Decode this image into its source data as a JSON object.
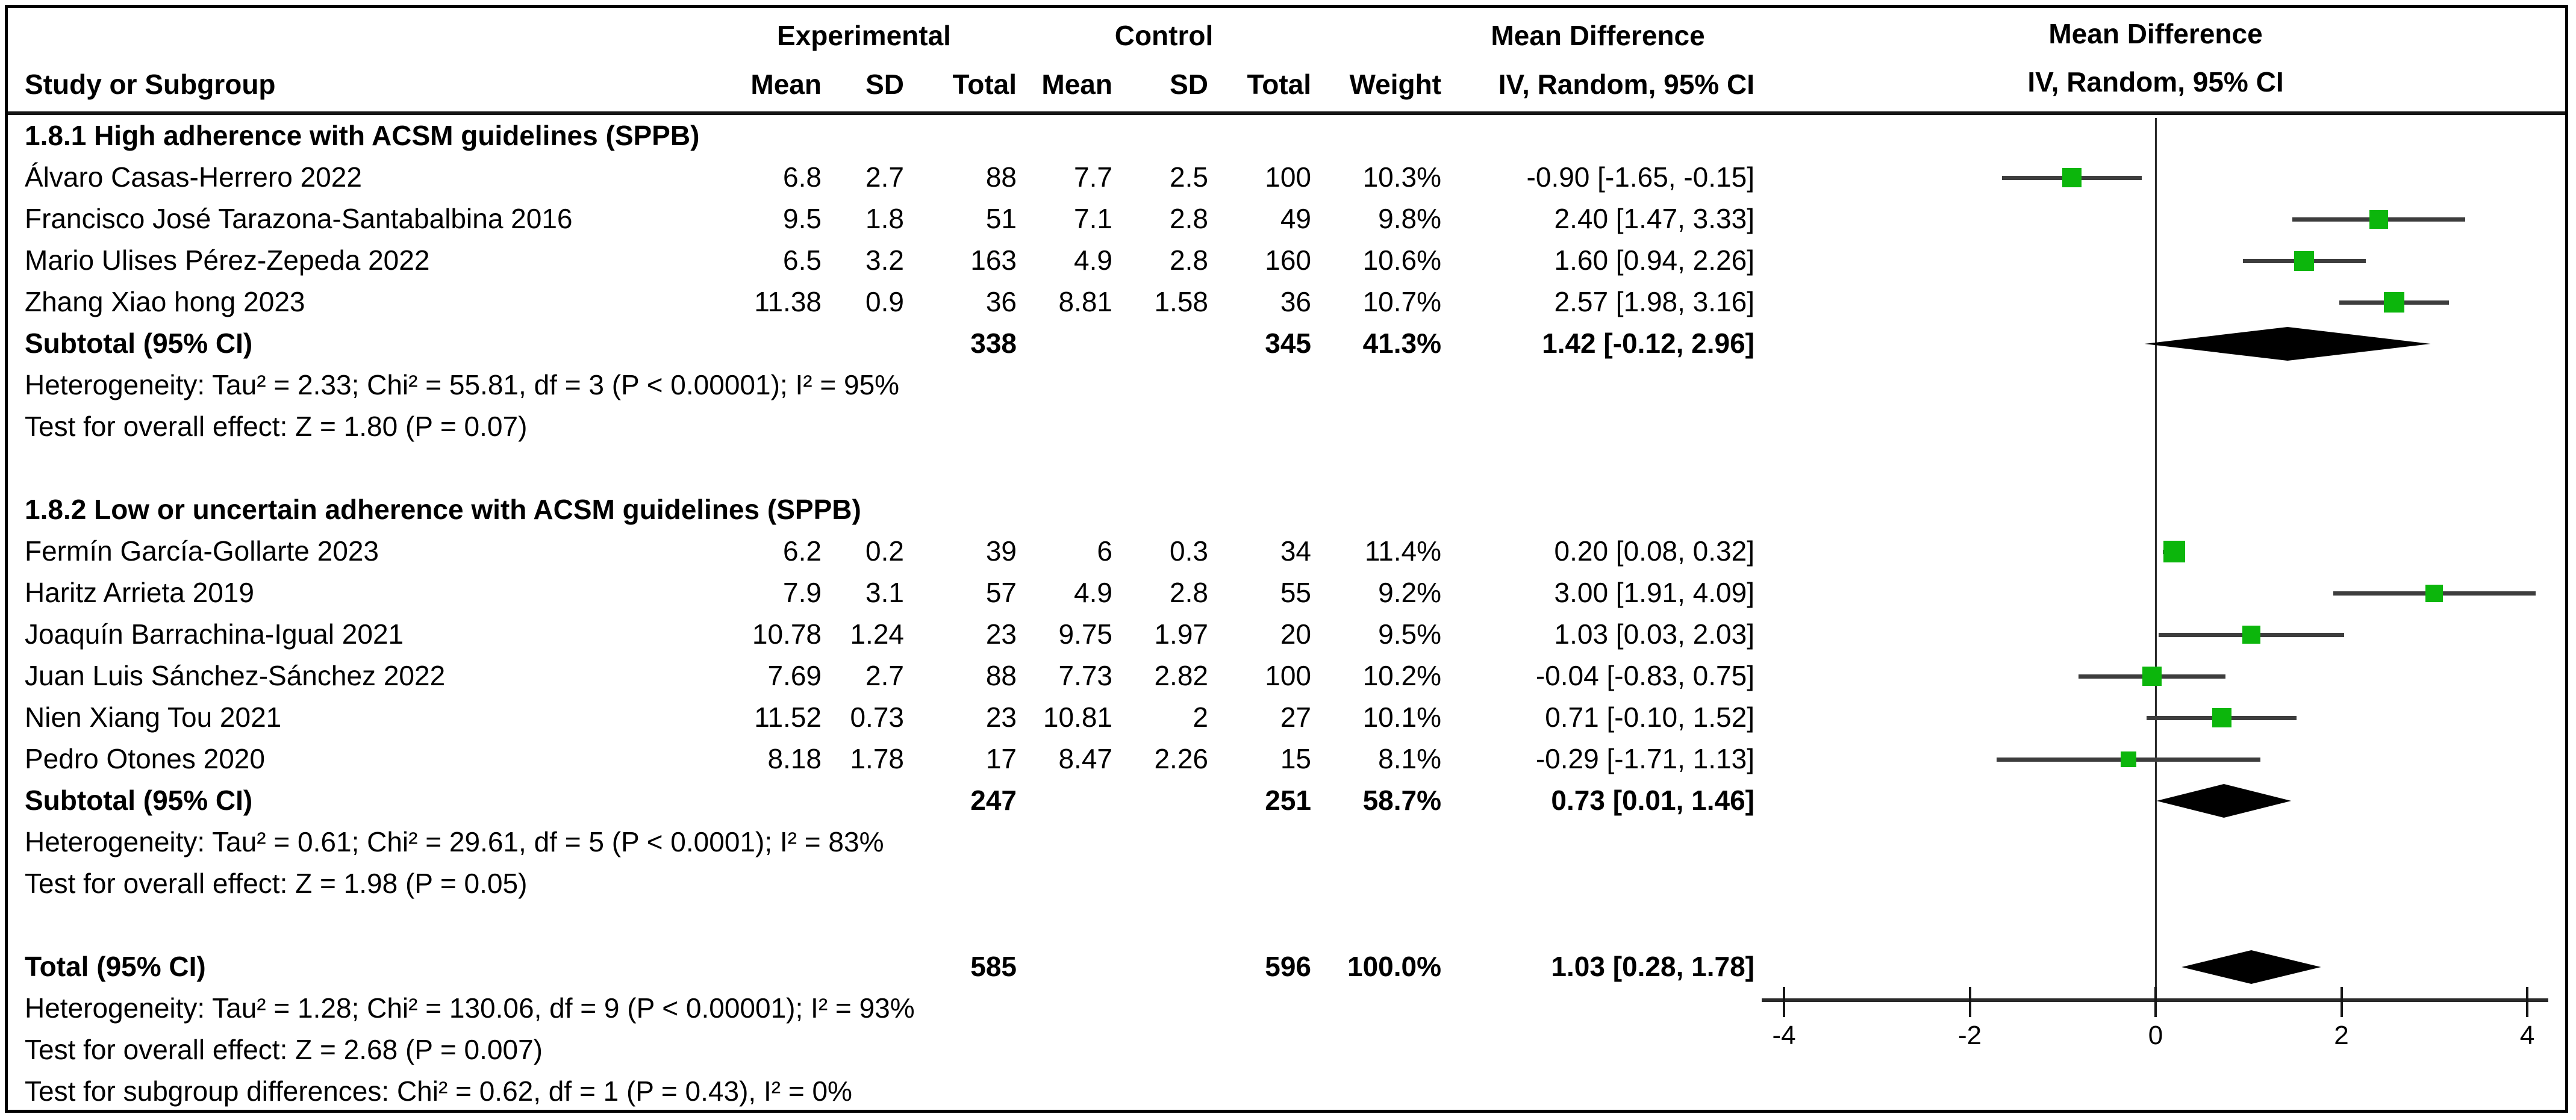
{
  "header": {
    "experimental": "Experimental",
    "control": "Control",
    "mean_difference": "Mean Difference",
    "plot_title": "Mean Difference",
    "plot_subtitle": "IV, Random, 95% CI",
    "cols": {
      "study": "Study or Subgroup",
      "mean_e": "Mean",
      "sd_e": "SD",
      "total_e": "Total",
      "mean_c": "Mean",
      "sd_c": "SD",
      "total_c": "Total",
      "weight": "Weight",
      "ci": "IV, Random, 95% CI"
    }
  },
  "colors": {
    "marker_green": "#0cb60c",
    "ci_line": "#3d3d3d",
    "diamond": "#000000",
    "axis": "#161616"
  },
  "chart_data": {
    "type": "forest",
    "effect_measure": "Mean Difference, IV, Random, 95% CI",
    "axis": {
      "min": -4,
      "max": 4,
      "ticks": [
        -4,
        -2,
        0,
        2,
        4
      ],
      "tick_labels": [
        "-4",
        "-2",
        "0",
        "2",
        "4"
      ]
    },
    "groups": [
      {
        "title": "1.8.1 High adherence with ACSM guidelines (SPPB)",
        "studies": [
          {
            "name": "Álvaro Casas-Herrero 2022",
            "mean_e": "6.8",
            "sd_e": "2.7",
            "total_e": "88",
            "mean_c": "7.7",
            "sd_c": "2.5",
            "total_c": "100",
            "weight": "10.3%",
            "weight_val": 10.3,
            "ci_text": "-0.90 [-1.65, -0.15]",
            "md": -0.9,
            "lo": -1.65,
            "hi": -0.15
          },
          {
            "name": "Francisco José Tarazona-Santabalbina 2016",
            "mean_e": "9.5",
            "sd_e": "1.8",
            "total_e": "51",
            "mean_c": "7.1",
            "sd_c": "2.8",
            "total_c": "49",
            "weight": "9.8%",
            "weight_val": 9.8,
            "ci_text": "2.40 [1.47, 3.33]",
            "md": 2.4,
            "lo": 1.47,
            "hi": 3.33
          },
          {
            "name": "Mario Ulises Pérez-Zepeda 2022",
            "mean_e": "6.5",
            "sd_e": "3.2",
            "total_e": "163",
            "mean_c": "4.9",
            "sd_c": "2.8",
            "total_c": "160",
            "weight": "10.6%",
            "weight_val": 10.6,
            "ci_text": "1.60 [0.94, 2.26]",
            "md": 1.6,
            "lo": 0.94,
            "hi": 2.26
          },
          {
            "name": "Zhang Xiao hong 2023",
            "mean_e": "11.38",
            "sd_e": "0.9",
            "total_e": "36",
            "mean_c": "8.81",
            "sd_c": "1.58",
            "total_c": "36",
            "weight": "10.7%",
            "weight_val": 10.7,
            "ci_text": "2.57 [1.98, 3.16]",
            "md": 2.57,
            "lo": 1.98,
            "hi": 3.16
          }
        ],
        "subtotal": {
          "label": "Subtotal (95% CI)",
          "total_e": "338",
          "total_c": "345",
          "weight": "41.3%",
          "ci_text": "1.42 [-0.12, 2.96]",
          "md": 1.42,
          "lo": -0.12,
          "hi": 2.96
        },
        "heterogeneity": "Heterogeneity: Tau² = 2.33; Chi² = 55.81, df = 3 (P < 0.00001); I² = 95%",
        "overall_effect": "Test for overall effect: Z = 1.80 (P = 0.07)"
      },
      {
        "title": "1.8.2 Low or uncertain adherence with ACSM guidelines (SPPB)",
        "studies": [
          {
            "name": "Fermín García-Gollarte 2023",
            "mean_e": "6.2",
            "sd_e": "0.2",
            "total_e": "39",
            "mean_c": "6",
            "sd_c": "0.3",
            "total_c": "34",
            "weight": "11.4%",
            "weight_val": 11.4,
            "ci_text": "0.20 [0.08, 0.32]",
            "md": 0.2,
            "lo": 0.08,
            "hi": 0.32
          },
          {
            "name": "Haritz Arrieta 2019",
            "mean_e": "7.9",
            "sd_e": "3.1",
            "total_e": "57",
            "mean_c": "4.9",
            "sd_c": "2.8",
            "total_c": "55",
            "weight": "9.2%",
            "weight_val": 9.2,
            "ci_text": "3.00 [1.91, 4.09]",
            "md": 3.0,
            "lo": 1.91,
            "hi": 4.09
          },
          {
            "name": "Joaquín Barrachina-Igual 2021",
            "mean_e": "10.78",
            "sd_e": "1.24",
            "total_e": "23",
            "mean_c": "9.75",
            "sd_c": "1.97",
            "total_c": "20",
            "weight": "9.5%",
            "weight_val": 9.5,
            "ci_text": "1.03 [0.03, 2.03]",
            "md": 1.03,
            "lo": 0.03,
            "hi": 2.03
          },
          {
            "name": "Juan Luis Sánchez-Sánchez 2022",
            "mean_e": "7.69",
            "sd_e": "2.7",
            "total_e": "88",
            "mean_c": "7.73",
            "sd_c": "2.82",
            "total_c": "100",
            "weight": "10.2%",
            "weight_val": 10.2,
            "ci_text": "-0.04 [-0.83, 0.75]",
            "md": -0.04,
            "lo": -0.83,
            "hi": 0.75
          },
          {
            "name": "Nien Xiang Tou 2021",
            "mean_e": "11.52",
            "sd_e": "0.73",
            "total_e": "23",
            "mean_c": "10.81",
            "sd_c": "2",
            "total_c": "27",
            "weight": "10.1%",
            "weight_val": 10.1,
            "ci_text": "0.71 [-0.10, 1.52]",
            "md": 0.71,
            "lo": -0.1,
            "hi": 1.52
          },
          {
            "name": "Pedro Otones 2020",
            "mean_e": "8.18",
            "sd_e": "1.78",
            "total_e": "17",
            "mean_c": "8.47",
            "sd_c": "2.26",
            "total_c": "15",
            "weight": "8.1%",
            "weight_val": 8.1,
            "ci_text": "-0.29 [-1.71, 1.13]",
            "md": -0.29,
            "lo": -1.71,
            "hi": 1.13
          }
        ],
        "subtotal": {
          "label": "Subtotal (95% CI)",
          "total_e": "247",
          "total_c": "251",
          "weight": "58.7%",
          "ci_text": "0.73 [0.01, 1.46]",
          "md": 0.73,
          "lo": 0.01,
          "hi": 1.46
        },
        "heterogeneity": "Heterogeneity: Tau² = 0.61; Chi² = 29.61, df = 5 (P < 0.0001); I² = 83%",
        "overall_effect": "Test for overall effect: Z = 1.98 (P = 0.05)"
      }
    ],
    "total": {
      "label": "Total (95% CI)",
      "total_e": "585",
      "total_c": "596",
      "weight": "100.0%",
      "ci_text": "1.03 [0.28, 1.78]",
      "md": 1.03,
      "lo": 0.28,
      "hi": 1.78
    },
    "total_heterogeneity": "Heterogeneity: Tau² = 1.28; Chi² = 130.06, df = 9 (P < 0.00001); I² = 93%",
    "total_overall_effect": "Test for overall effect: Z = 2.68 (P = 0.007)",
    "subgroup_differences": "Test for subgroup differences: Chi² = 0.62, df = 1 (P = 0.43), I² = 0%"
  }
}
